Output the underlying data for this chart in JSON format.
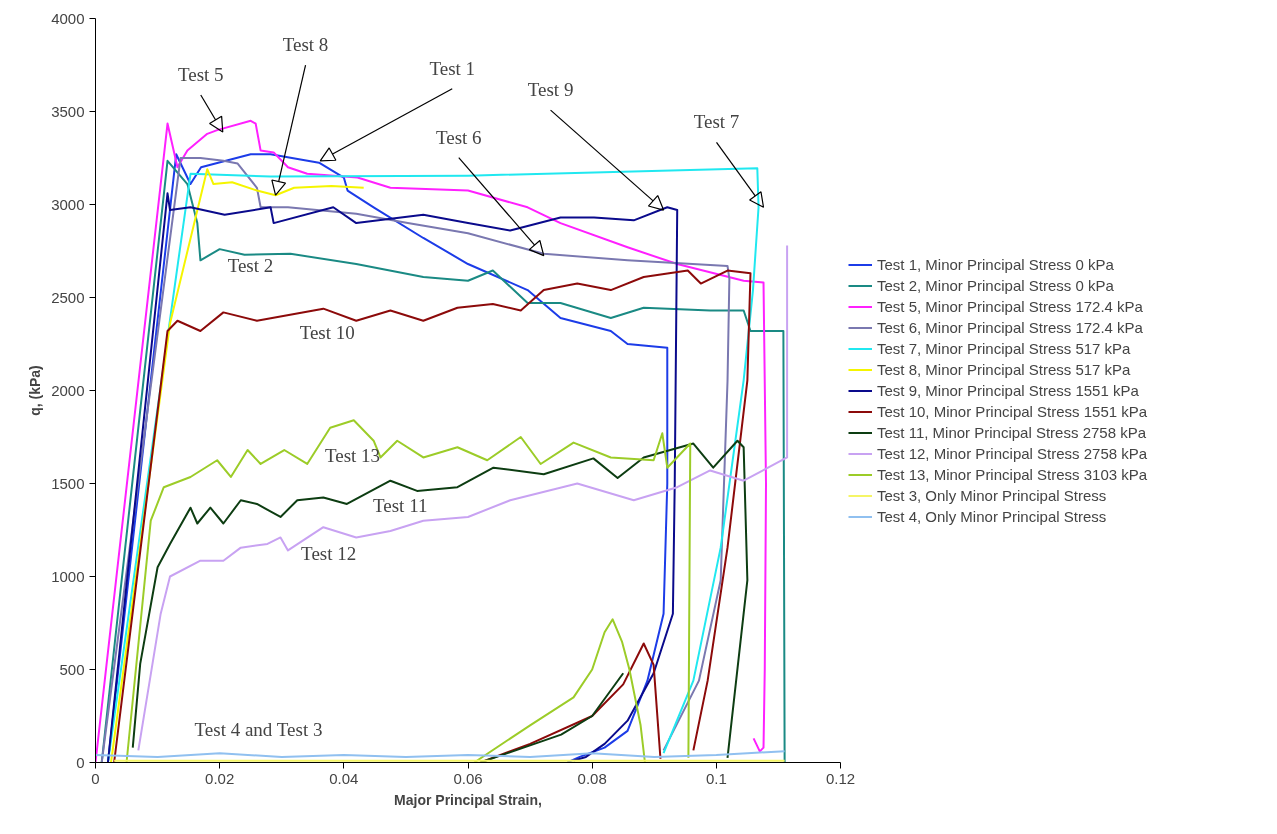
{
  "chart_data": {
    "type": "line",
    "xlabel": "Major Principal Strain,",
    "ylabel": "q, (kPa)",
    "xlim": [
      0,
      0.12
    ],
    "xticks": [
      0,
      0.02,
      0.04,
      0.06,
      0.08,
      0.1,
      0.12
    ],
    "ylim": [
      0,
      4000
    ],
    "yticks": [
      0,
      500,
      1000,
      1500,
      2000,
      2500,
      3000,
      3500,
      4000
    ],
    "grid": false,
    "legend": "right",
    "marker": "none",
    "line_style": "solid",
    "series": [
      {
        "name": "Test 1, Minor Principal Stress 0 kPa",
        "color": "#1c3ce8",
        "x": [
          0.002,
          0.013,
          0.0153,
          0.017,
          0.025,
          0.0282,
          0.036,
          0.04,
          0.0406,
          0.0448,
          0.0528,
          0.06,
          0.0696,
          0.0749,
          0.083,
          0.0857,
          0.0921,
          0.0921,
          0.0915,
          0.0889,
          0.0857,
          0.082,
          0.078,
          0.076
        ],
        "values": [
          0,
          3270,
          3110,
          3200,
          3270,
          3270,
          3225,
          3145,
          3075,
          2985,
          2820,
          2680,
          2540,
          2390,
          2320,
          2250,
          2230,
          1500,
          800,
          440,
          170,
          80,
          30,
          0
        ]
      },
      {
        "name": "Test 2, Minor Principal Stress 0 kPa",
        "color": "#1a8a84",
        "x": [
          0.001,
          0.0116,
          0.0148,
          0.0164,
          0.0169,
          0.02,
          0.024,
          0.0314,
          0.042,
          0.0528,
          0.06,
          0.064,
          0.0696,
          0.0749,
          0.083,
          0.0883,
          0.099,
          0.1044,
          0.1055,
          0.1108,
          0.111
        ],
        "values": [
          0,
          3235,
          3110,
          2900,
          2700,
          2760,
          2730,
          2735,
          2680,
          2610,
          2590,
          2645,
          2470,
          2470,
          2390,
          2445,
          2430,
          2430,
          2320,
          2320,
          0
        ]
      },
      {
        "name": "Test 5, Minor Principal Stress 172.4 kPa",
        "color": "#ff20ff",
        "x": [
          0,
          0.0116,
          0.0132,
          0.0148,
          0.018,
          0.0196,
          0.025,
          0.0258,
          0.0266,
          0.0287,
          0.031,
          0.0341,
          0.0422,
          0.0475,
          0.06,
          0.0696,
          0.0749,
          0.0857,
          0.0937,
          0.1044,
          0.1076,
          0.108,
          0.1078,
          0.1076,
          0.107,
          0.106
        ],
        "values": [
          0,
          3435,
          3200,
          3290,
          3380,
          3400,
          3450,
          3435,
          3290,
          3280,
          3200,
          3165,
          3145,
          3090,
          3075,
          2985,
          2900,
          2770,
          2680,
          2590,
          2580,
          1500,
          500,
          80,
          60,
          130
        ]
      },
      {
        "name": "Test 6, Minor Principal Stress 172.4 kPa",
        "color": "#7a78b0",
        "x": [
          0.001,
          0.0137,
          0.0169,
          0.0206,
          0.0229,
          0.026,
          0.0266,
          0.031,
          0.042,
          0.0503,
          0.06,
          0.0722,
          0.0857,
          0.1018,
          0.1021,
          0.1018,
          0.1007,
          0.0972,
          0.0915
        ],
        "values": [
          0,
          3250,
          3250,
          3235,
          3220,
          3090,
          2985,
          2985,
          2950,
          2900,
          2845,
          2735,
          2700,
          2670,
          2600,
          2050,
          980,
          440,
          65
        ]
      },
      {
        "name": "Test 7, Minor Principal Stress 517 kPa",
        "color": "#20e8f0",
        "x": [
          0.002,
          0.0153,
          0.0282,
          0.06,
          0.1066,
          0.1068,
          0.1059,
          0.1044,
          0.1007,
          0.0963,
          0.0915
        ],
        "values": [
          0,
          3165,
          3150,
          3155,
          3195,
          2985,
          2540,
          2055,
          1155,
          440,
          50
        ]
      },
      {
        "name": "Test 8, Minor Principal Stress 517 kPa",
        "color": "#f5f500",
        "x": [
          0.0025,
          0.012,
          0.018,
          0.019,
          0.022,
          0.026,
          0.029,
          0.032,
          0.038,
          0.0432
        ],
        "values": [
          0,
          2360,
          3190,
          3110,
          3120,
          3075,
          3050,
          3090,
          3100,
          3090
        ]
      },
      {
        "name": "Test 9, Minor Principal Stress 1551 kPa",
        "color": "#0a0a8c",
        "x": [
          0.002,
          0.0116,
          0.012,
          0.0153,
          0.0208,
          0.0282,
          0.0287,
          0.0383,
          0.042,
          0.0528,
          0.06,
          0.0668,
          0.0749,
          0.0803,
          0.0867,
          0.0921,
          0.0937,
          0.0933,
          0.093,
          0.0899,
          0.0857,
          0.082,
          0.079,
          0.077
        ],
        "values": [
          0,
          3060,
          2970,
          2985,
          2945,
          2985,
          2900,
          2985,
          2900,
          2945,
          2900,
          2860,
          2930,
          2930,
          2915,
          2985,
          2970,
          1500,
          800,
          480,
          225,
          100,
          30,
          10
        ]
      },
      {
        "name": "Test 10, Minor Principal Stress 1551 kPa",
        "color": "#8c0a0a",
        "x": [
          0.003,
          0.0116,
          0.0132,
          0.0169,
          0.0206,
          0.026,
          0.0367,
          0.042,
          0.0475,
          0.0528,
          0.0583,
          0.064,
          0.0685,
          0.0722,
          0.0776,
          0.083,
          0.0883,
          0.0954,
          0.0975,
          0.1018,
          0.1055,
          0.105,
          0.1018,
          0.0986,
          0.0963,
          null,
          0.062,
          0.07,
          0.08,
          0.085,
          0.0883,
          0.0899,
          0.091
        ],
        "values": [
          0,
          2320,
          2375,
          2320,
          2420,
          2375,
          2440,
          2375,
          2430,
          2375,
          2445,
          2465,
          2430,
          2540,
          2575,
          2540,
          2610,
          2645,
          2575,
          2645,
          2630,
          2055,
          1155,
          440,
          65,
          null,
          0,
          100,
          250,
          420,
          640,
          525,
          20
        ]
      },
      {
        "name": "Test 11, Minor Principal Stress 2758 kPa",
        "color": "#0d3d12",
        "x": [
          0.006,
          0.0072,
          0.01,
          0.012,
          0.0153,
          0.0164,
          0.0185,
          0.0206,
          0.0234,
          0.026,
          0.0298,
          0.0325,
          0.0367,
          0.0405,
          0.0475,
          0.0518,
          0.0583,
          0.0641,
          0.0722,
          0.0802,
          0.0841,
          0.0883,
          0.0963,
          0.0995,
          0.1034,
          0.1044,
          0.105,
          0.1018,
          null,
          0.062,
          0.075,
          0.08,
          0.085
        ],
        "values": [
          80,
          530,
          1050,
          1175,
          1370,
          1285,
          1370,
          1285,
          1410,
          1390,
          1320,
          1410,
          1425,
          1390,
          1515,
          1460,
          1480,
          1585,
          1550,
          1635,
          1530,
          1640,
          1715,
          1585,
          1730,
          1695,
          980,
          25,
          null,
          0,
          150,
          250,
          480
        ]
      },
      {
        "name": "Test 12, Minor Principal Stress 2758 kPa",
        "color": "#c8a2f2",
        "x": [
          0.0069,
          0.0105,
          0.012,
          0.0169,
          0.0206,
          0.0234,
          0.0277,
          0.0298,
          0.031,
          0.0367,
          0.042,
          0.0475,
          0.0528,
          0.06,
          0.0668,
          0.0776,
          0.0867,
          0.0937,
          0.099,
          0.1044,
          0.1114,
          0.1114
        ],
        "values": [
          65,
          800,
          1000,
          1085,
          1085,
          1155,
          1175,
          1210,
          1140,
          1265,
          1210,
          1245,
          1300,
          1320,
          1410,
          1500,
          1410,
          1480,
          1570,
          1515,
          1640,
          2780
        ]
      },
      {
        "name": "Test 13, Minor Principal Stress 3103 kPa",
        "color": "#9ccc28",
        "x": [
          0.005,
          0.0089,
          0.011,
          0.0153,
          0.0196,
          0.0218,
          0.0245,
          0.0266,
          0.0304,
          0.0341,
          0.0378,
          0.0416,
          0.0448,
          0.0459,
          0.0486,
          0.0528,
          0.0583,
          0.0631,
          0.0685,
          0.0717,
          0.077,
          0.083,
          0.0899,
          0.0913,
          0.0921,
          0.0958,
          0.0955,
          null,
          0.061,
          0.07,
          0.077,
          0.08,
          0.082,
          0.0833,
          0.0848,
          0.086,
          0.0878,
          0.0885
        ],
        "values": [
          0,
          1300,
          1480,
          1535,
          1625,
          1535,
          1680,
          1605,
          1680,
          1605,
          1800,
          1840,
          1730,
          1640,
          1730,
          1640,
          1695,
          1625,
          1750,
          1605,
          1720,
          1640,
          1625,
          1770,
          1585,
          1715,
          25,
          null,
          0,
          200,
          350,
          500,
          700,
          770,
          650,
          500,
          200,
          0
        ]
      },
      {
        "name": "Test 3, Only Minor Principal Stress",
        "color": "#f5f566",
        "x": [
          0.003,
          0.05,
          0.111
        ],
        "values": [
          10,
          10,
          10
        ]
      },
      {
        "name": "Test 4, Only Minor Principal Stress",
        "color": "#90c0f0",
        "x": [
          0,
          0.01,
          0.02,
          0.03,
          0.04,
          0.05,
          0.06,
          0.07,
          0.08,
          0.09,
          0.1,
          0.105,
          0.111
        ],
        "values": [
          40,
          30,
          50,
          30,
          40,
          30,
          40,
          30,
          50,
          30,
          40,
          50,
          60
        ]
      }
    ],
    "annotations": [
      {
        "text": "Test 5",
        "x": 0.0205,
        "y": 3390
      },
      {
        "text": "Test 8",
        "x": 0.029,
        "y": 3050
      },
      {
        "text": "Test 1",
        "x": 0.0362,
        "y": 3235
      },
      {
        "text": "Test 9",
        "x": 0.0915,
        "y": 2970
      },
      {
        "text": "Test 7",
        "x": 0.1076,
        "y": 2985
      },
      {
        "text": "Test 6",
        "x": 0.0722,
        "y": 2725
      },
      "Test 2",
      "Test 10",
      "Test 13",
      "Test 11",
      "Test 12",
      "Test 4 and Test 3"
    ]
  }
}
